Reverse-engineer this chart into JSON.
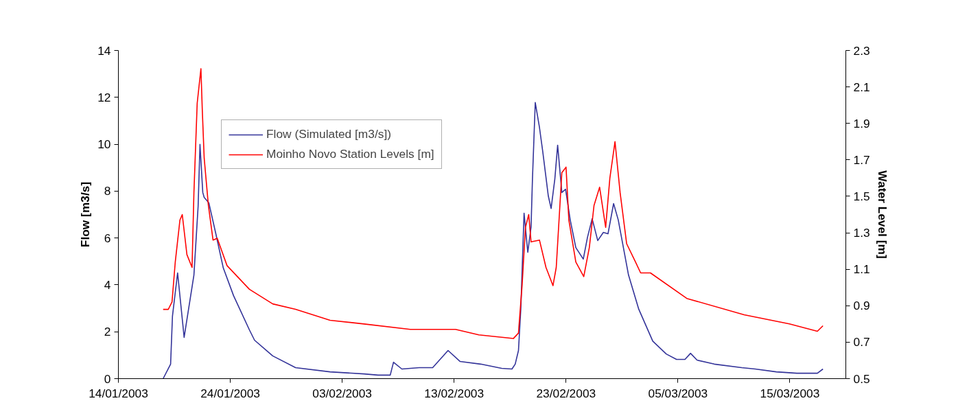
{
  "chart_data": {
    "type": "line",
    "xlabel": null,
    "ylabel": "Flow [m3/s]",
    "y2label": "Water Level [m]",
    "xlim": [
      "2003-01-14",
      "2003-03-20"
    ],
    "xticks": [
      {
        "value": "2003-01-14",
        "label": "14/01/2003"
      },
      {
        "value": "2003-01-24",
        "label": "24/01/2003"
      },
      {
        "value": "2003-02-03",
        "label": "03/02/2003"
      },
      {
        "value": "2003-02-13",
        "label": "13/02/2003"
      },
      {
        "value": "2003-02-23",
        "label": "23/02/2003"
      },
      {
        "value": "2003-03-05",
        "label": "05/03/2003"
      },
      {
        "value": "2003-03-15",
        "label": "15/03/2003"
      }
    ],
    "ylim": [
      0,
      14
    ],
    "yticks": [
      0,
      2,
      4,
      6,
      8,
      10,
      12,
      14
    ],
    "y2lim": [
      0.5,
      2.3
    ],
    "y2ticks": [
      0.5,
      0.7,
      0.9,
      1.1,
      1.3,
      1.5,
      1.7,
      1.9,
      2.1,
      2.3
    ],
    "legend": "top left",
    "marker": "none",
    "line_style": "solid",
    "series": [
      {
        "name": "Flow (Simulated [m3/s])",
        "color": "#333399",
        "x": [
          "2003-01-18T00:00",
          "2003-01-18T16:00",
          "2003-01-18T20:00",
          "2003-01-19T07:00",
          "2003-01-19T21:00",
          "2003-01-20T18:00",
          "2003-01-21T03:00",
          "2003-01-21T07:00",
          "2003-01-21T13:00",
          "2003-01-21T16:00",
          "2003-01-22T02:00",
          "2003-01-22T17:00",
          "2003-01-23T09:00",
          "2003-01-24T07:00",
          "2003-01-25T17:00",
          "2003-01-26T04:00",
          "2003-01-27T19:00",
          "2003-01-29T20:00",
          "2003-02-01T22:00",
          "2003-02-04T23:00",
          "2003-02-06T05:00",
          "2003-02-07T07:00",
          "2003-02-07T14:00",
          "2003-02-08T08:00",
          "2003-02-09T21:00",
          "2003-02-11T02:00",
          "2003-02-12T11:00",
          "2003-02-13T13:00",
          "2003-02-15T09:00",
          "2003-02-17T06:00",
          "2003-02-18T04:00",
          "2003-02-18T11:00",
          "2003-02-18T18:00",
          "2003-02-18T23:00",
          "2003-02-19T03:00",
          "2003-02-19T06:00",
          "2003-02-19T14:00",
          "2003-02-19T21:00",
          "2003-02-20T00:00",
          "2003-02-20T06:00",
          "2003-02-20T15:00",
          "2003-02-20T22:00",
          "2003-02-21T10:00",
          "2003-02-21T16:00",
          "2003-02-22T00:00",
          "2003-02-22T06:00",
          "2003-02-22T15:00",
          "2003-02-22T23:00",
          "2003-02-23T09:00",
          "2003-02-23T21:00",
          "2003-02-24T13:00",
          "2003-02-24T22:00",
          "2003-02-25T08:00",
          "2003-02-25T20:00",
          "2003-02-26T08:00",
          "2003-02-26T18:00",
          "2003-02-27T06:00",
          "2003-02-27T16:00",
          "2003-02-28T14:00",
          "2003-03-01T12:00",
          "2003-03-02T18:00",
          "2003-03-03T23:00",
          "2003-03-04T21:00",
          "2003-03-05T15:00",
          "2003-03-06T03:00",
          "2003-03-06T17:00",
          "2003-03-08T06:00",
          "2003-03-10T17:00",
          "2003-03-11T22:00",
          "2003-03-13T19:00",
          "2003-03-15T15:00",
          "2003-03-17T11:00",
          "2003-03-17T23:00"
        ],
        "values": [
          0,
          0.62,
          2.67,
          4.51,
          1.76,
          4.42,
          7.35,
          9.99,
          7.94,
          7.73,
          7.5,
          6.18,
          4.72,
          3.54,
          2.08,
          1.64,
          0.97,
          0.47,
          0.29,
          0.2,
          0.15,
          0.15,
          0.7,
          0.41,
          0.47,
          0.47,
          1.2,
          0.73,
          0.62,
          0.44,
          0.41,
          0.62,
          1.2,
          2.96,
          5.3,
          7.06,
          5.39,
          6.47,
          8.52,
          11.78,
          10.72,
          9.7,
          7.79,
          7.26,
          8.52,
          9.96,
          7.94,
          8.08,
          6.77,
          5.59,
          5.1,
          6.03,
          6.82,
          5.89,
          6.24,
          6.18,
          7.47,
          6.77,
          4.42,
          2.96,
          1.6,
          1.05,
          0.82,
          0.82,
          1.08,
          0.79,
          0.62,
          0.47,
          0.41,
          0.29,
          0.23,
          0.23,
          0.41
        ]
      },
      {
        "name": "Moinho Novo Station Levels [m]",
        "color": "#ff0000",
        "axis": "y2",
        "x": [
          "2003-01-18T00:00",
          "2003-01-18T11:00",
          "2003-01-18T19:00",
          "2003-01-19T02:00",
          "2003-01-19T12:00",
          "2003-01-19T17:00",
          "2003-01-20T03:00",
          "2003-01-20T14:00",
          "2003-01-20T18:00",
          "2003-01-21T01:00",
          "2003-01-21T09:00",
          "2003-01-21T12:00",
          "2003-01-21T16:00",
          "2003-01-22T01:00",
          "2003-01-22T11:00",
          "2003-01-22T20:00",
          "2003-01-23T17:00",
          "2003-01-25T17:00",
          "2003-01-27T19:00",
          "2003-01-29T20:00",
          "2003-02-01T22:00",
          "2003-02-04T23:00",
          "2003-02-09T02:00",
          "2003-02-13T03:00",
          "2003-02-15T05:00",
          "2003-02-18T07:00",
          "2003-02-18T18:00",
          "2003-02-19T02:00",
          "2003-02-19T09:00",
          "2003-02-19T16:00",
          "2003-02-19T21:00",
          "2003-02-20T15:00",
          "2003-02-21T05:00",
          "2003-02-21T20:00",
          "2003-02-22T03:00",
          "2003-02-22T15:00",
          "2003-02-23T00:00",
          "2003-02-23T06:00",
          "2003-02-23T21:00",
          "2003-02-24T14:00",
          "2003-02-25T02:00",
          "2003-02-25T12:00",
          "2003-02-26T00:00",
          "2003-02-26T13:00",
          "2003-02-26T22:00",
          "2003-02-27T09:00",
          "2003-02-27T20:00",
          "2003-02-28T10:00",
          "2003-03-01T05:00",
          "2003-03-01T16:00",
          "2003-03-02T13:00",
          "2003-03-05T19:00",
          "2003-03-10T22:00",
          "2003-03-14T23:00",
          "2003-03-17T11:00",
          "2003-03-17T23:00"
        ],
        "values": [
          0.88,
          0.88,
          0.92,
          1.14,
          1.37,
          1.4,
          1.18,
          1.11,
          1.52,
          2.01,
          2.2,
          1.97,
          1.71,
          1.45,
          1.26,
          1.27,
          1.12,
          0.99,
          0.91,
          0.88,
          0.82,
          0.8,
          0.77,
          0.77,
          0.74,
          0.72,
          0.75,
          1.02,
          1.33,
          1.4,
          1.25,
          1.26,
          1.11,
          1.01,
          1.11,
          1.63,
          1.66,
          1.37,
          1.14,
          1.06,
          1.22,
          1.45,
          1.55,
          1.33,
          1.6,
          1.8,
          1.52,
          1.24,
          1.14,
          1.08,
          1.08,
          0.94,
          0.85,
          0.8,
          0.76,
          0.79
        ]
      }
    ]
  }
}
